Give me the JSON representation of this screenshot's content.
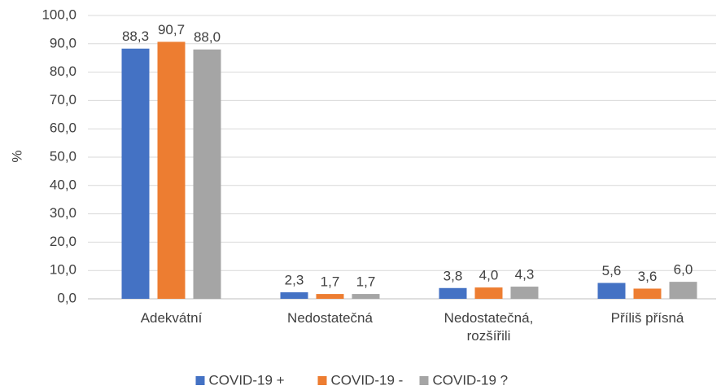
{
  "chart_data": {
    "type": "bar",
    "y_label": "%",
    "categories": [
      "Adekvátní",
      "Nedostatečná",
      "Nedostatečná,\nrozšířili",
      "Příliš přísná"
    ],
    "series": [
      {
        "name": "COVID-19 +",
        "color": "#4472c4",
        "values": [
          88.3,
          2.3,
          3.8,
          5.6
        ],
        "value_labels": [
          "88,3",
          "2,3",
          "3,8",
          "5,6"
        ]
      },
      {
        "name": "COVID-19 -",
        "color": "#ed7d31",
        "values": [
          90.7,
          1.7,
          4.0,
          3.6
        ],
        "value_labels": [
          "90,7",
          "1,7",
          "4,0",
          "3,6"
        ]
      },
      {
        "name": "COVID-19 ?",
        "color": "#a5a5a5",
        "values": [
          88.0,
          1.7,
          4.3,
          6.0
        ],
        "value_labels": [
          "88,0",
          "1,7",
          "4,3",
          "6,0"
        ]
      }
    ],
    "ylim": [
      0,
      100
    ],
    "yticks": [
      {
        "value": 0,
        "label": "0,0"
      },
      {
        "value": 10,
        "label": "10,0"
      },
      {
        "value": 20,
        "label": "20,0"
      },
      {
        "value": 30,
        "label": "30,0"
      },
      {
        "value": 40,
        "label": "40,0"
      },
      {
        "value": 50,
        "label": "50,0"
      },
      {
        "value": 60,
        "label": "60,0"
      },
      {
        "value": 70,
        "label": "70,0"
      },
      {
        "value": 80,
        "label": "80,0"
      },
      {
        "value": 90,
        "label": "90,0"
      },
      {
        "value": 100,
        "label": "100,0"
      }
    ],
    "grid": true,
    "legend": "bottom"
  }
}
